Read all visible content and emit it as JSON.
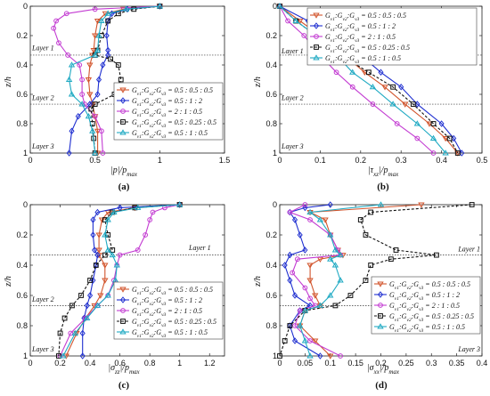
{
  "figure": {
    "panels": [
      "(a)",
      "(b)",
      "(c)",
      "(d)"
    ]
  },
  "styles": {
    "legend_order": [
      "s1",
      "s2",
      "s3",
      "s4",
      "s5"
    ],
    "s1": {
      "color": "#d2552d",
      "marker": "triangle-down",
      "dash": ""
    },
    "s2": {
      "color": "#1f2fd0",
      "marker": "diamond",
      "dash": ""
    },
    "s3": {
      "color": "#c33cd2",
      "marker": "circle",
      "dash": ""
    },
    "s4": {
      "color": "#111111",
      "marker": "square",
      "dash": "3,2"
    },
    "s5": {
      "color": "#20aac3",
      "marker": "triangle-up",
      "dash": ""
    }
  },
  "legend_labels": {
    "s1": "G_v1:G_v2:G_v3 = 0.5 : 0.5 : 0.5",
    "s2": "G_v1:G_v2:G_v3 = 0.5 : 1 : 2",
    "s3": "G_v1:G_v2:G_v3 = 2 : 1 : 0.5",
    "s4": "G_v1:G_v2:G_v3 = 0.5 : 0.25 : 0.5",
    "s5": "G_v1:G_v2:G_v3 = 0.5 : 1 : 0.5"
  },
  "chart_data": [
    {
      "panel": "(a)",
      "type": "line",
      "xlabel": "|p|/p_max",
      "ylabel": "z/h",
      "xlim": [
        0,
        1.5
      ],
      "ylim": [
        0,
        1
      ],
      "y_inverted": true,
      "grid": false,
      "xticks": [
        "0",
        "0.5",
        "1",
        "1.5"
      ],
      "yticks": [
        "0",
        "0.2",
        "0.4",
        "0.6",
        "0.8",
        "1"
      ],
      "layers": [
        "Layer 1",
        "Layer 2",
        "Layer 3"
      ],
      "interfaces": [
        0.333,
        0.667
      ],
      "legend": "bottom-right",
      "series": [
        {
          "style": "s1",
          "z": [
            0,
            0.02,
            0.05,
            0.1,
            0.2,
            0.3,
            0.333,
            0.4,
            0.5,
            0.6,
            0.667,
            0.75,
            0.85,
            1
          ],
          "x": [
            1,
            0.72,
            0.58,
            0.52,
            0.5,
            0.49,
            0.48,
            0.46,
            0.45,
            0.46,
            0.48,
            0.5,
            0.52,
            0.52
          ]
        },
        {
          "style": "s2",
          "z": [
            0,
            0.02,
            0.05,
            0.1,
            0.2,
            0.3,
            0.333,
            0.4,
            0.5,
            0.6,
            0.667,
            0.75,
            0.85,
            1
          ],
          "x": [
            1,
            0.75,
            0.63,
            0.6,
            0.59,
            0.6,
            0.6,
            0.56,
            0.53,
            0.52,
            0.46,
            0.37,
            0.32,
            0.3
          ]
        },
        {
          "style": "s3",
          "z": [
            0,
            0.02,
            0.05,
            0.1,
            0.15,
            0.25,
            0.333,
            0.4,
            0.5,
            0.6,
            0.667,
            0.75,
            0.85,
            1
          ],
          "x": [
            1,
            0.5,
            0.28,
            0.2,
            0.18,
            0.22,
            0.29,
            0.38,
            0.4,
            0.4,
            0.42,
            0.5,
            0.55,
            0.56
          ]
        },
        {
          "style": "s4",
          "z": [
            0,
            0.02,
            0.05,
            0.1,
            0.2,
            0.3,
            0.333,
            0.36,
            0.4,
            0.5,
            0.6,
            0.667,
            0.7,
            0.8,
            0.9,
            1
          ],
          "x": [
            1,
            0.8,
            0.68,
            0.6,
            0.55,
            0.52,
            0.5,
            0.62,
            0.68,
            0.7,
            0.65,
            0.5,
            0.47,
            0.48,
            0.49,
            0.5
          ]
        },
        {
          "style": "s5",
          "z": [
            0,
            0.02,
            0.05,
            0.1,
            0.2,
            0.3,
            0.333,
            0.4,
            0.5,
            0.6,
            0.667,
            0.75,
            0.85,
            1
          ],
          "x": [
            1,
            0.74,
            0.6,
            0.55,
            0.53,
            0.52,
            0.5,
            0.32,
            0.3,
            0.32,
            0.4,
            0.45,
            0.48,
            0.5
          ]
        }
      ]
    },
    {
      "panel": "(b)",
      "type": "line",
      "xlabel": "|τ_xz|/p_max",
      "ylabel": "z/h",
      "xlim": [
        0,
        0.5
      ],
      "ylim": [
        0,
        1
      ],
      "y_inverted": true,
      "grid": false,
      "xticks": [
        "0",
        "0.1",
        "0.2",
        "0.3",
        "0.4",
        "0.5"
      ],
      "yticks": [
        "0",
        "0.2",
        "0.4",
        "0.6",
        "0.8",
        "1"
      ],
      "layers": [
        "Layer 1",
        "Layer 2",
        "Layer 3"
      ],
      "interfaces": [
        0.333,
        0.667
      ],
      "legend": "top-right",
      "series": [
        {
          "style": "s1",
          "z": [
            0,
            0.1,
            0.2,
            0.333,
            0.45,
            0.55,
            0.667,
            0.8,
            0.9,
            1
          ],
          "x": [
            0,
            0.05,
            0.1,
            0.16,
            0.21,
            0.26,
            0.31,
            0.37,
            0.41,
            0.44
          ]
        },
        {
          "style": "s2",
          "z": [
            0,
            0.1,
            0.2,
            0.333,
            0.45,
            0.55,
            0.667,
            0.8,
            0.9,
            1
          ],
          "x": [
            0,
            0.07,
            0.13,
            0.2,
            0.25,
            0.3,
            0.34,
            0.4,
            0.43,
            0.45
          ]
        },
        {
          "style": "s3",
          "z": [
            0,
            0.1,
            0.2,
            0.333,
            0.45,
            0.55,
            0.667,
            0.8,
            0.9,
            1
          ],
          "x": [
            0,
            0.02,
            0.06,
            0.1,
            0.14,
            0.18,
            0.23,
            0.29,
            0.34,
            0.38
          ]
        },
        {
          "style": "s4",
          "z": [
            0,
            0.1,
            0.2,
            0.333,
            0.45,
            0.55,
            0.667,
            0.8,
            0.9,
            1
          ],
          "x": [
            0,
            0.04,
            0.09,
            0.15,
            0.22,
            0.28,
            0.33,
            0.38,
            0.42,
            0.44
          ]
        },
        {
          "style": "s5",
          "z": [
            0,
            0.1,
            0.2,
            0.333,
            0.45,
            0.55,
            0.667,
            0.8,
            0.9,
            1
          ],
          "x": [
            0,
            0.04,
            0.09,
            0.14,
            0.18,
            0.23,
            0.28,
            0.34,
            0.38,
            0.41
          ]
        }
      ]
    },
    {
      "panel": "(c)",
      "type": "line",
      "xlabel": "|σ_zz|/p_max",
      "ylabel": "z/h",
      "xlim": [
        0,
        1.3
      ],
      "ylim": [
        0,
        1
      ],
      "y_inverted": true,
      "grid": false,
      "xticks": [
        "0",
        "0.2",
        "0.4",
        "0.6",
        "0.8",
        "1",
        "1.2"
      ],
      "yticks": [
        "0",
        "0.2",
        "0.4",
        "0.6",
        "0.8",
        "1"
      ],
      "layers": [
        "Layer 1",
        "Layer 2",
        "Layer 3"
      ],
      "interfaces": [
        0.333,
        0.667
      ],
      "legend": "bottom-right",
      "series": [
        {
          "style": "s1",
          "z": [
            0,
            0.02,
            0.05,
            0.1,
            0.2,
            0.3,
            0.333,
            0.4,
            0.5,
            0.6,
            0.667,
            0.75,
            0.85,
            1
          ],
          "x": [
            1,
            0.7,
            0.52,
            0.48,
            0.46,
            0.46,
            0.46,
            0.5,
            0.5,
            0.47,
            0.43,
            0.37,
            0.31,
            0.24
          ]
        },
        {
          "style": "s2",
          "z": [
            0,
            0.02,
            0.05,
            0.1,
            0.2,
            0.3,
            0.333,
            0.4,
            0.5,
            0.6,
            0.667,
            0.75,
            0.85,
            1
          ],
          "x": [
            1,
            0.6,
            0.45,
            0.42,
            0.42,
            0.43,
            0.45,
            0.44,
            0.42,
            0.4,
            0.38,
            0.36,
            0.35,
            0.35
          ]
        },
        {
          "style": "s3",
          "z": [
            0,
            0.02,
            0.05,
            0.1,
            0.2,
            0.3,
            0.333,
            0.4,
            0.5,
            0.6,
            0.667,
            0.75,
            0.85,
            1
          ],
          "x": [
            1,
            0.9,
            0.82,
            0.8,
            0.77,
            0.72,
            0.6,
            0.58,
            0.56,
            0.52,
            0.45,
            0.37,
            0.27,
            0.2
          ]
        },
        {
          "style": "s4",
          "z": [
            0,
            0.02,
            0.05,
            0.1,
            0.2,
            0.3,
            0.333,
            0.4,
            0.5,
            0.6,
            0.667,
            0.75,
            0.85,
            1
          ],
          "x": [
            1,
            0.7,
            0.55,
            0.5,
            0.52,
            0.55,
            0.5,
            0.44,
            0.4,
            0.34,
            0.28,
            0.23,
            0.2,
            0.19
          ]
        },
        {
          "style": "s5",
          "z": [
            0,
            0.02,
            0.05,
            0.1,
            0.2,
            0.3,
            0.333,
            0.4,
            0.5,
            0.6,
            0.667,
            0.75,
            0.85,
            1
          ],
          "x": [
            1,
            0.72,
            0.56,
            0.52,
            0.5,
            0.52,
            0.55,
            0.58,
            0.57,
            0.52,
            0.45,
            0.38,
            0.3,
            0.22
          ]
        }
      ]
    },
    {
      "panel": "(d)",
      "type": "line",
      "xlabel": "|σ_xx|/p_max",
      "ylabel": "z/h",
      "xlim": [
        0,
        0.4
      ],
      "ylim": [
        0,
        1
      ],
      "y_inverted": true,
      "grid": false,
      "xticks": [
        "0",
        "0.05",
        "0.1",
        "0.15",
        "0.2",
        "0.25",
        "0.3",
        "0.35",
        "0.4"
      ],
      "yticks": [
        "0",
        "0.2",
        "0.4",
        "0.6",
        "0.8",
        "1"
      ],
      "layers": [
        "Layer 1",
        "Layer 2",
        "Layer 3"
      ],
      "interfaces": [
        0.333,
        0.667
      ],
      "legend": "bottom-right",
      "series": [
        {
          "style": "s1",
          "z": [
            0,
            0.05,
            0.1,
            0.2,
            0.3,
            0.333,
            0.36,
            0.4,
            0.5,
            0.6,
            0.667,
            0.7,
            0.8,
            0.9,
            1
          ],
          "x": [
            0.28,
            0.06,
            0.09,
            0.1,
            0.115,
            0.125,
            0.08,
            0.06,
            0.06,
            0.07,
            0.08,
            0.05,
            0.04,
            0.07,
            0.1
          ]
        },
        {
          "style": "s2",
          "z": [
            0,
            0.02,
            0.05,
            0.1,
            0.2,
            0.3,
            0.333,
            0.4,
            0.5,
            0.6,
            0.667,
            0.7,
            0.8,
            0.9,
            1
          ],
          "x": [
            0.1,
            0.05,
            0.02,
            0.03,
            0.04,
            0.05,
            0.02,
            0.01,
            0.02,
            0.03,
            0.06,
            0.04,
            0.02,
            0.03,
            0.08
          ]
        },
        {
          "style": "s3",
          "z": [
            0,
            0.05,
            0.1,
            0.2,
            0.3,
            0.333,
            0.36,
            0.45,
            0.55,
            0.62,
            0.667,
            0.7,
            0.8,
            0.9,
            1
          ],
          "x": [
            0.05,
            0.02,
            0.06,
            0.1,
            0.115,
            0.12,
            0.035,
            0.025,
            0.05,
            0.06,
            0.07,
            0.04,
            0.03,
            0.06,
            0.12
          ]
        },
        {
          "style": "s4",
          "z": [
            0,
            0.05,
            0.1,
            0.2,
            0.3,
            0.333,
            0.36,
            0.4,
            0.5,
            0.6,
            0.667,
            0.7,
            0.8,
            0.9,
            1
          ],
          "x": [
            0.38,
            0.18,
            0.16,
            0.17,
            0.23,
            0.31,
            0.22,
            0.18,
            0.17,
            0.14,
            0.11,
            0.05,
            0.02,
            0.01,
            0.0
          ]
        },
        {
          "style": "s5",
          "z": [
            0,
            0.05,
            0.1,
            0.2,
            0.3,
            0.333,
            0.36,
            0.4,
            0.5,
            0.6,
            0.667,
            0.7,
            0.8,
            0.9,
            1
          ],
          "x": [
            0.2,
            0.06,
            0.08,
            0.1,
            0.11,
            0.12,
            0.1,
            0.11,
            0.12,
            0.1,
            0.08,
            0.05,
            0.04,
            0.05,
            0.06
          ]
        }
      ]
    }
  ]
}
